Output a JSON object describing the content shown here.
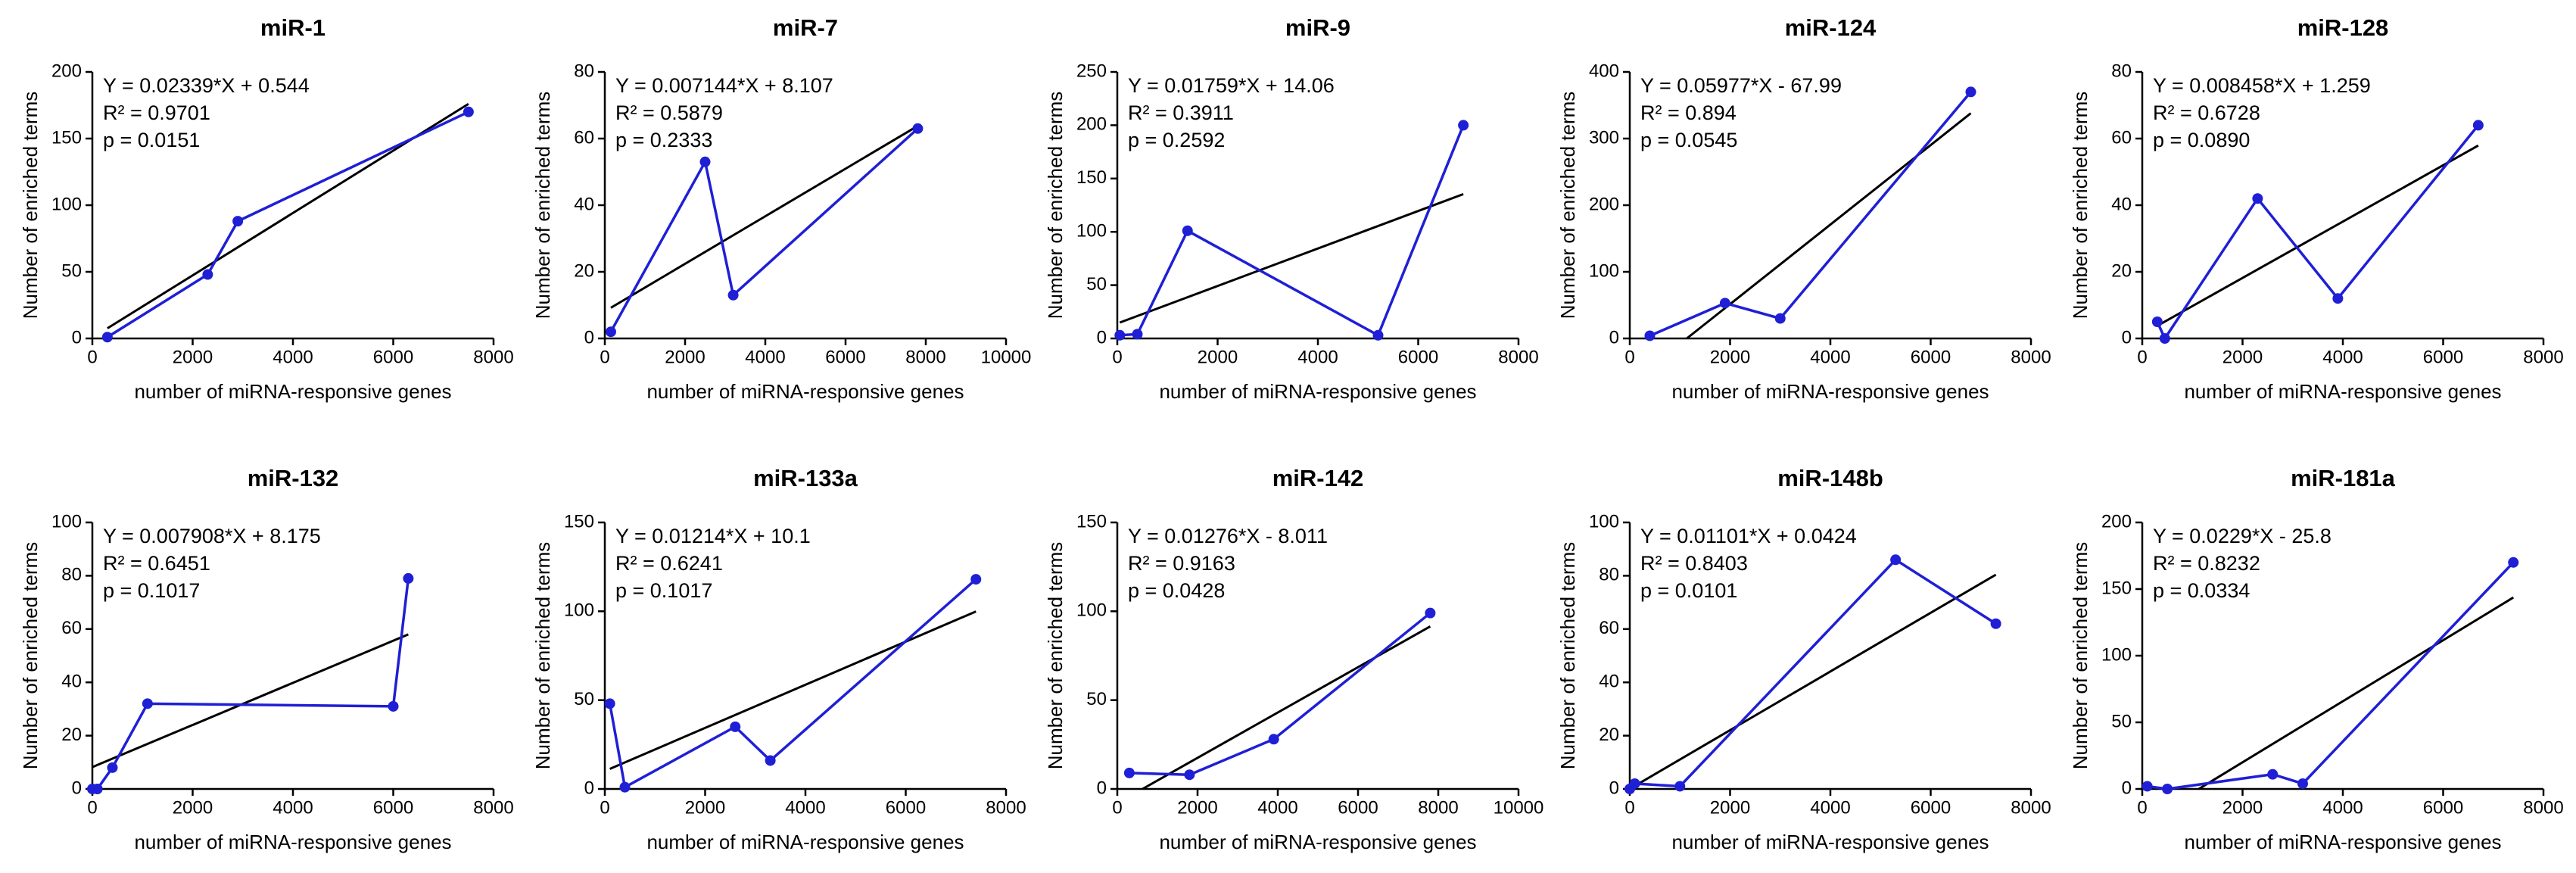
{
  "chart_data": [
    {
      "type": "line",
      "title": "miR-1",
      "xlabel": "number of miRNA-responsive genes",
      "ylabel": "Number of enriched terms",
      "annotations": [
        "Y = 0.02339*X + 0.544",
        "R² = 0.9701",
        "p = 0.0151"
      ],
      "x": [
        300,
        2300,
        2900,
        7500
      ],
      "values": [
        1,
        48,
        88,
        170
      ],
      "color": "#1f1fd6",
      "fit_x": [
        300,
        7500
      ],
      "fit_values": [
        7.6,
        176
      ],
      "fit_color": "#000000",
      "xlim": [
        0,
        8000
      ],
      "xticks": [
        0,
        2000,
        4000,
        6000,
        8000
      ],
      "ylim": [
        0,
        200
      ],
      "yticks": [
        0,
        50,
        100,
        150,
        200
      ]
    },
    {
      "type": "line",
      "title": "miR-7",
      "xlabel": "number of miRNA-responsive genes",
      "ylabel": "Number of enriched terms",
      "annotations": [
        "Y = 0.007144*X + 8.107",
        "R² = 0.5879",
        "p = 0.2333"
      ],
      "x": [
        150,
        2500,
        3200,
        7800
      ],
      "values": [
        2,
        53,
        13,
        63
      ],
      "color": "#1f1fd6",
      "fit_x": [
        150,
        7800
      ],
      "fit_values": [
        9.2,
        63.8
      ],
      "fit_color": "#000000",
      "xlim": [
        0,
        10000
      ],
      "xticks": [
        0,
        2000,
        4000,
        6000,
        8000,
        10000
      ],
      "ylim": [
        0,
        80
      ],
      "yticks": [
        0,
        20,
        40,
        60,
        80
      ]
    },
    {
      "type": "line",
      "title": "miR-9",
      "xlabel": "number of miRNA-responsive genes",
      "ylabel": "Number of enriched terms",
      "annotations": [
        "Y = 0.01759*X + 14.06",
        "R² = 0.3911",
        "p = 0.2592"
      ],
      "x": [
        50,
        400,
        1400,
        5200,
        6900
      ],
      "values": [
        3,
        4,
        101,
        3,
        200
      ],
      "color": "#1f1fd6",
      "fit_x": [
        50,
        6900
      ],
      "fit_values": [
        14.9,
        135.4
      ],
      "fit_color": "#000000",
      "xlim": [
        0,
        8000
      ],
      "xticks": [
        0,
        2000,
        4000,
        6000,
        8000
      ],
      "ylim": [
        0,
        250
      ],
      "yticks": [
        0,
        50,
        100,
        150,
        200,
        250
      ]
    },
    {
      "type": "line",
      "title": "miR-124",
      "xlabel": "number of miRNA-responsive genes",
      "ylabel": "Number of enriched terms",
      "annotations": [
        "Y = 0.05977*X - 67.99",
        "R² = 0.894",
        "p = 0.0545"
      ],
      "x": [
        400,
        1900,
        3000,
        6800
      ],
      "values": [
        4,
        53,
        30,
        370
      ],
      "color": "#1f1fd6",
      "fit_x": [
        1137,
        6800
      ],
      "fit_values": [
        0,
        338
      ],
      "fit_color": "#000000",
      "xlim": [
        0,
        8000
      ],
      "xticks": [
        0,
        2000,
        4000,
        6000,
        8000
      ],
      "ylim": [
        0,
        400
      ],
      "yticks": [
        0,
        100,
        200,
        300,
        400
      ]
    },
    {
      "type": "line",
      "title": "miR-128",
      "xlabel": "number of miRNA-responsive genes",
      "ylabel": "Number of enriched terms",
      "annotations": [
        "Y = 0.008458*X + 1.259",
        "R² = 0.6728",
        "p = 0.0890"
      ],
      "x": [
        300,
        450,
        2300,
        3900,
        6700
      ],
      "values": [
        5,
        0,
        42,
        12,
        64
      ],
      "color": "#1f1fd6",
      "fit_x": [
        300,
        6700
      ],
      "fit_values": [
        3.8,
        57.9
      ],
      "fit_color": "#000000",
      "xlim": [
        0,
        8000
      ],
      "xticks": [
        0,
        2000,
        4000,
        6000,
        8000
      ],
      "ylim": [
        0,
        80
      ],
      "yticks": [
        0,
        20,
        40,
        60,
        80
      ]
    },
    {
      "type": "line",
      "title": "miR-132",
      "xlabel": "number of miRNA-responsive genes",
      "ylabel": "Number of enriched terms",
      "annotations": [
        "Y = 0.007908*X + 8.175",
        "R² = 0.6451",
        "p = 0.1017"
      ],
      "x": [
        0,
        100,
        400,
        1100,
        6000,
        6300
      ],
      "values": [
        0,
        0,
        8,
        32,
        31,
        79
      ],
      "color": "#1f1fd6",
      "fit_x": [
        0,
        6300
      ],
      "fit_values": [
        8.2,
        58
      ],
      "fit_color": "#000000",
      "xlim": [
        0,
        8000
      ],
      "xticks": [
        0,
        2000,
        4000,
        6000,
        8000
      ],
      "ylim": [
        0,
        100
      ],
      "yticks": [
        0,
        20,
        40,
        60,
        80,
        100
      ]
    },
    {
      "type": "line",
      "title": "miR-133a",
      "xlabel": "number of miRNA-responsive genes",
      "ylabel": "Number of enriched terms",
      "annotations": [
        "Y = 0.01214*X + 10.1",
        "R² = 0.6241",
        "p = 0.1017"
      ],
      "x": [
        100,
        400,
        2600,
        3300,
        7400
      ],
      "values": [
        48,
        1,
        35,
        16,
        118
      ],
      "color": "#1f1fd6",
      "fit_x": [
        100,
        7400
      ],
      "fit_values": [
        11.3,
        99.9
      ],
      "fit_color": "#000000",
      "xlim": [
        0,
        8000
      ],
      "xticks": [
        0,
        2000,
        4000,
        6000,
        8000
      ],
      "ylim": [
        0,
        150
      ],
      "yticks": [
        0,
        50,
        100,
        150
      ]
    },
    {
      "type": "line",
      "title": "miR-142",
      "xlabel": "number of miRNA-responsive genes",
      "ylabel": "Number of enriched terms",
      "annotations": [
        "Y = 0.01276*X - 8.011",
        "R² = 0.9163",
        "p = 0.0428"
      ],
      "x": [
        300,
        1800,
        3900,
        7800
      ],
      "values": [
        9,
        8,
        28,
        99
      ],
      "color": "#1f1fd6",
      "fit_x": [
        628,
        7800
      ],
      "fit_values": [
        0,
        91.5
      ],
      "fit_color": "#000000",
      "xlim": [
        0,
        10000
      ],
      "xticks": [
        0,
        2000,
        4000,
        6000,
        8000,
        10000
      ],
      "ylim": [
        0,
        150
      ],
      "yticks": [
        0,
        50,
        100,
        150
      ]
    },
    {
      "type": "line",
      "title": "miR-148b",
      "xlabel": "number of miRNA-responsive genes",
      "ylabel": "Number of enriched terms",
      "annotations": [
        "Y = 0.01101*X + 0.0424",
        "R² = 0.8403",
        "p = 0.0101"
      ],
      "x": [
        0,
        100,
        1000,
        5300,
        7300
      ],
      "values": [
        0,
        2,
        1,
        86,
        62
      ],
      "color": "#1f1fd6",
      "fit_x": [
        0,
        7300
      ],
      "fit_values": [
        0.04,
        80.4
      ],
      "fit_color": "#000000",
      "xlim": [
        0,
        8000
      ],
      "xticks": [
        0,
        2000,
        4000,
        6000,
        8000
      ],
      "ylim": [
        0,
        100
      ],
      "yticks": [
        0,
        20,
        40,
        60,
        80,
        100
      ]
    },
    {
      "type": "line",
      "title": "miR-181a",
      "xlabel": "number of miRNA-responsive genes",
      "ylabel": "Number of enriched terms",
      "annotations": [
        "Y = 0.0229*X - 25.8",
        "R² = 0.8232",
        "p = 0.0334"
      ],
      "x": [
        100,
        500,
        2600,
        3200,
        7400
      ],
      "values": [
        2,
        0,
        11,
        4,
        170
      ],
      "color": "#1f1fd6",
      "fit_x": [
        1127,
        7400
      ],
      "fit_values": [
        0,
        143.7
      ],
      "fit_color": "#000000",
      "xlim": [
        0,
        8000
      ],
      "xticks": [
        0,
        2000,
        4000,
        6000,
        8000
      ],
      "ylim": [
        0,
        200
      ],
      "yticks": [
        0,
        50,
        100,
        150,
        200
      ]
    }
  ]
}
